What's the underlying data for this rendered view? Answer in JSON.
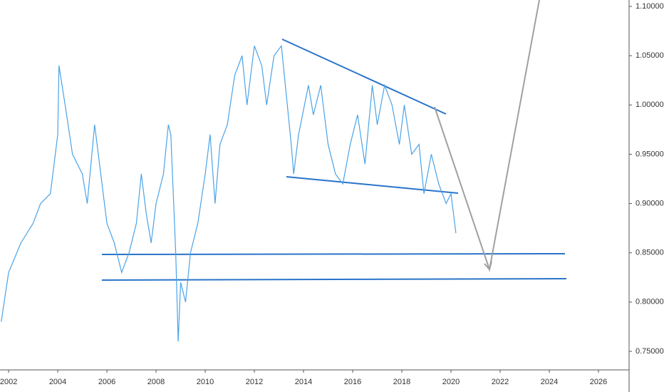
{
  "chart_data": {
    "type": "line",
    "x": [
      2001.7,
      2002.0,
      2002.5,
      2003.0,
      2003.3,
      2003.7,
      2004.0,
      2004.05,
      2004.3,
      2004.6,
      2005.0,
      2005.2,
      2005.5,
      2005.7,
      2006.0,
      2006.3,
      2006.6,
      2006.9,
      2007.2,
      2007.4,
      2007.6,
      2007.8,
      2008.0,
      2008.3,
      2008.5,
      2008.6,
      2008.8,
      2008.9,
      2009.0,
      2009.2,
      2009.4,
      2009.7,
      2010.0,
      2010.2,
      2010.4,
      2010.6,
      2010.9,
      2011.2,
      2011.5,
      2011.7,
      2012.0,
      2012.3,
      2012.5,
      2012.8,
      2013.1,
      2013.3,
      2013.5,
      2013.6,
      2013.8,
      2014.2,
      2014.4,
      2014.7,
      2015.0,
      2015.3,
      2015.6,
      2015.9,
      2016.2,
      2016.5,
      2016.8,
      2017.0,
      2017.3,
      2017.6,
      2017.9,
      2018.1,
      2018.4,
      2018.7,
      2018.9,
      2019.2,
      2019.5,
      2019.8,
      2020.0,
      2020.2
    ],
    "series": [
      {
        "color": "#4aa3e8",
        "values": [
          0.78,
          0.83,
          0.86,
          0.88,
          0.9,
          0.91,
          0.97,
          1.04,
          1.0,
          0.95,
          0.93,
          0.9,
          0.98,
          0.94,
          0.88,
          0.86,
          0.83,
          0.85,
          0.88,
          0.93,
          0.89,
          0.86,
          0.9,
          0.93,
          0.98,
          0.97,
          0.85,
          0.76,
          0.82,
          0.8,
          0.85,
          0.88,
          0.93,
          0.97,
          0.9,
          0.96,
          0.98,
          1.03,
          1.05,
          1.0,
          1.06,
          1.04,
          1.0,
          1.05,
          1.06,
          1.01,
          0.96,
          0.93,
          0.97,
          1.02,
          0.99,
          1.02,
          0.96,
          0.93,
          0.92,
          0.96,
          0.99,
          0.94,
          1.02,
          0.98,
          1.02,
          1.0,
          0.96,
          1.0,
          0.95,
          0.96,
          0.91,
          0.95,
          0.92,
          0.9,
          0.91,
          0.87
        ]
      }
    ],
    "xlim": [
      2001.65,
      2027.16
    ],
    "ylim": [
      0.7319,
      1.1065
    ],
    "xticks": [
      2002,
      2004,
      2006,
      2008,
      2010,
      2012,
      2014,
      2016,
      2018,
      2020,
      2022,
      2024,
      2026
    ],
    "yticks": [
      {
        "value": 0.75,
        "label": "0.75000"
      },
      {
        "value": 0.8,
        "label": "0.80000"
      },
      {
        "value": 0.85,
        "label": "0.85000"
      },
      {
        "value": 0.9,
        "label": "0.90000"
      },
      {
        "value": 0.95,
        "label": "0.95000"
      },
      {
        "value": 1.0,
        "label": "1.00000"
      },
      {
        "value": 1.05,
        "label": "1.05000"
      },
      {
        "value": 1.1,
        "label": "1.10000"
      }
    ]
  }
}
